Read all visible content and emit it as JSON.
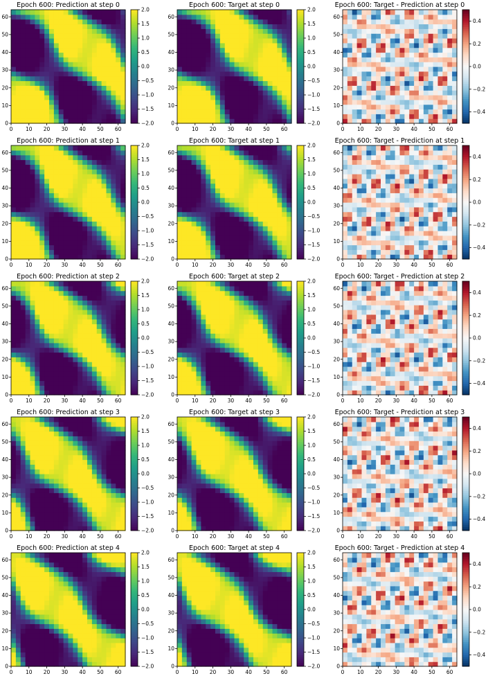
{
  "figure": {
    "rows": 5,
    "columns": [
      "prediction",
      "target",
      "difference"
    ]
  },
  "colormaps": {
    "field": [
      "#440154",
      "#482878",
      "#3e4989",
      "#31688e",
      "#26828e",
      "#1f9e89",
      "#35b779",
      "#6ece58",
      "#b5de2b",
      "#fde725"
    ],
    "diff": [
      "#053061",
      "#2166ac",
      "#4393c3",
      "#92c5de",
      "#d1e5f0",
      "#f7f7f7",
      "#fddbc7",
      "#f4a582",
      "#d6604d",
      "#b2182b",
      "#67001f"
    ]
  },
  "chart_data": [
    {
      "type": "heatmap",
      "title": "Epoch 600: Prediction at step 0",
      "step": 0,
      "field": "prediction",
      "colormap": "viridis",
      "xlim": [
        0,
        64
      ],
      "ylim": [
        0,
        64
      ],
      "xticks": [
        0,
        10,
        20,
        30,
        40,
        50,
        60
      ],
      "yticks": [
        0,
        10,
        20,
        30,
        40,
        50,
        60
      ],
      "color_range": [
        -2.0,
        2.0
      ],
      "colorbar_ticks": [
        "-2.0",
        "-1.5",
        "-1.0",
        "-0.5",
        "0.0",
        "0.5",
        "1.0",
        "1.5",
        "2.0"
      ]
    },
    {
      "type": "heatmap",
      "title": "Epoch 600: Target at step 0",
      "step": 0,
      "field": "target",
      "colormap": "viridis",
      "xlim": [
        0,
        64
      ],
      "ylim": [
        0,
        64
      ],
      "xticks": [
        0,
        10,
        20,
        30,
        40,
        50,
        60
      ],
      "yticks": [
        0,
        10,
        20,
        30,
        40,
        50,
        60
      ],
      "color_range": [
        -2.0,
        2.0
      ],
      "colorbar_ticks": [
        "-2.0",
        "-1.5",
        "-1.0",
        "-0.5",
        "0.0",
        "0.5",
        "1.0",
        "1.5",
        "2.0"
      ]
    },
    {
      "type": "heatmap",
      "title": "Epoch 600: Target - Prediction at step 0",
      "step": 0,
      "field": "difference",
      "colormap": "RdBu_r",
      "xlim": [
        0,
        64
      ],
      "ylim": [
        0,
        64
      ],
      "xticks": [
        0,
        10,
        20,
        30,
        40,
        50,
        60
      ],
      "yticks": [
        0,
        10,
        20,
        30,
        40,
        50,
        60
      ],
      "color_range": [
        -0.5,
        0.5
      ],
      "colorbar_ticks": [
        "-0.4",
        "-0.2",
        "0.0",
        "0.2",
        "0.4"
      ]
    },
    {
      "type": "heatmap",
      "title": "Epoch 600: Prediction at step 1",
      "step": 1,
      "field": "prediction",
      "colormap": "viridis",
      "xlim": [
        0,
        64
      ],
      "ylim": [
        0,
        64
      ],
      "xticks": [
        0,
        10,
        20,
        30,
        40,
        50,
        60
      ],
      "yticks": [
        0,
        10,
        20,
        30,
        40,
        50,
        60
      ],
      "color_range": [
        -2.0,
        2.0
      ],
      "colorbar_ticks": [
        "-2.0",
        "-1.5",
        "-1.0",
        "-0.5",
        "0.0",
        "0.5",
        "1.0",
        "1.5",
        "2.0"
      ]
    },
    {
      "type": "heatmap",
      "title": "Epoch 600: Target at step 1",
      "step": 1,
      "field": "target",
      "colormap": "viridis",
      "xlim": [
        0,
        64
      ],
      "ylim": [
        0,
        64
      ],
      "xticks": [
        0,
        10,
        20,
        30,
        40,
        50,
        60
      ],
      "yticks": [
        0,
        10,
        20,
        30,
        40,
        50,
        60
      ],
      "color_range": [
        -2.0,
        2.0
      ],
      "colorbar_ticks": [
        "-2.0",
        "-1.5",
        "-1.0",
        "-0.5",
        "0.0",
        "0.5",
        "1.0",
        "1.5",
        "2.0"
      ]
    },
    {
      "type": "heatmap",
      "title": "Epoch 600: Target - Prediction at step 1",
      "step": 1,
      "field": "difference",
      "colormap": "RdBu_r",
      "xlim": [
        0,
        64
      ],
      "ylim": [
        0,
        64
      ],
      "xticks": [
        0,
        10,
        20,
        30,
        40,
        50,
        60
      ],
      "yticks": [
        0,
        10,
        20,
        30,
        40,
        50,
        60
      ],
      "color_range": [
        -0.5,
        0.5
      ],
      "colorbar_ticks": [
        "-0.4",
        "-0.2",
        "0.0",
        "0.2",
        "0.4"
      ]
    },
    {
      "type": "heatmap",
      "title": "Epoch 600: Prediction at step 2",
      "step": 2,
      "field": "prediction",
      "colormap": "viridis",
      "xlim": [
        0,
        64
      ],
      "ylim": [
        0,
        64
      ],
      "xticks": [
        0,
        10,
        20,
        30,
        40,
        50,
        60
      ],
      "yticks": [
        0,
        10,
        20,
        30,
        40,
        50,
        60
      ],
      "color_range": [
        -2.0,
        2.0
      ],
      "colorbar_ticks": [
        "-2.0",
        "-1.5",
        "-1.0",
        "-0.5",
        "0.0",
        "0.5",
        "1.0",
        "1.5",
        "2.0"
      ]
    },
    {
      "type": "heatmap",
      "title": "Epoch 600: Target at step 2",
      "step": 2,
      "field": "target",
      "colormap": "viridis",
      "xlim": [
        0,
        64
      ],
      "ylim": [
        0,
        64
      ],
      "xticks": [
        0,
        10,
        20,
        30,
        40,
        50,
        60
      ],
      "yticks": [
        0,
        10,
        20,
        30,
        40,
        50,
        60
      ],
      "color_range": [
        -2.0,
        2.0
      ],
      "colorbar_ticks": [
        "-2.0",
        "-1.5",
        "-1.0",
        "-0.5",
        "0.0",
        "0.5",
        "1.0",
        "1.5",
        "2.0"
      ]
    },
    {
      "type": "heatmap",
      "title": "Epoch 600: Target - Prediction at step 2",
      "step": 2,
      "field": "difference",
      "colormap": "RdBu_r",
      "xlim": [
        0,
        64
      ],
      "ylim": [
        0,
        64
      ],
      "xticks": [
        0,
        10,
        20,
        30,
        40,
        50,
        60
      ],
      "yticks": [
        0,
        10,
        20,
        30,
        40,
        50,
        60
      ],
      "color_range": [
        -0.5,
        0.5
      ],
      "colorbar_ticks": [
        "-0.4",
        "-0.2",
        "0.0",
        "0.2",
        "0.4"
      ]
    },
    {
      "type": "heatmap",
      "title": "Epoch 600: Prediction at step 3",
      "step": 3,
      "field": "prediction",
      "colormap": "viridis",
      "xlim": [
        0,
        64
      ],
      "ylim": [
        0,
        64
      ],
      "xticks": [
        0,
        10,
        20,
        30,
        40,
        50,
        60
      ],
      "yticks": [
        0,
        10,
        20,
        30,
        40,
        50,
        60
      ],
      "color_range": [
        -2.0,
        2.0
      ],
      "colorbar_ticks": [
        "-2.0",
        "-1.5",
        "-1.0",
        "-0.5",
        "0.0",
        "0.5",
        "1.0",
        "1.5",
        "2.0"
      ]
    },
    {
      "type": "heatmap",
      "title": "Epoch 600: Target at step 3",
      "step": 3,
      "field": "target",
      "colormap": "viridis",
      "xlim": [
        0,
        64
      ],
      "ylim": [
        0,
        64
      ],
      "xticks": [
        0,
        10,
        20,
        30,
        40,
        50,
        60
      ],
      "yticks": [
        0,
        10,
        20,
        30,
        40,
        50,
        60
      ],
      "color_range": [
        -2.0,
        2.0
      ],
      "colorbar_ticks": [
        "-2.0",
        "-1.5",
        "-1.0",
        "-0.5",
        "0.0",
        "0.5",
        "1.0",
        "1.5",
        "2.0"
      ]
    },
    {
      "type": "heatmap",
      "title": "Epoch 600: Target - Prediction at step 3",
      "step": 3,
      "field": "difference",
      "colormap": "RdBu_r",
      "xlim": [
        0,
        64
      ],
      "ylim": [
        0,
        64
      ],
      "xticks": [
        0,
        10,
        20,
        30,
        40,
        50,
        60
      ],
      "yticks": [
        0,
        10,
        20,
        30,
        40,
        50,
        60
      ],
      "color_range": [
        -0.5,
        0.5
      ],
      "colorbar_ticks": [
        "-0.4",
        "-0.2",
        "0.0",
        "0.2",
        "0.4"
      ]
    },
    {
      "type": "heatmap",
      "title": "Epoch 600: Prediction at step 4",
      "step": 4,
      "field": "prediction",
      "colormap": "viridis",
      "xlim": [
        0,
        64
      ],
      "ylim": [
        0,
        64
      ],
      "xticks": [
        0,
        10,
        20,
        30,
        40,
        50,
        60
      ],
      "yticks": [
        0,
        10,
        20,
        30,
        40,
        50,
        60
      ],
      "color_range": [
        -2.0,
        2.0
      ],
      "colorbar_ticks": [
        "-2.0",
        "-1.5",
        "-1.0",
        "-0.5",
        "0.0",
        "0.5",
        "1.0",
        "1.5",
        "2.0"
      ]
    },
    {
      "type": "heatmap",
      "title": "Epoch 600: Target at step 4",
      "step": 4,
      "field": "target",
      "colormap": "viridis",
      "xlim": [
        0,
        64
      ],
      "ylim": [
        0,
        64
      ],
      "xticks": [
        0,
        10,
        20,
        30,
        40,
        50,
        60
      ],
      "yticks": [
        0,
        10,
        20,
        30,
        40,
        50,
        60
      ],
      "color_range": [
        -2.0,
        2.0
      ],
      "colorbar_ticks": [
        "-2.0",
        "-1.5",
        "-1.0",
        "-0.5",
        "0.0",
        "0.5",
        "1.0",
        "1.5",
        "2.0"
      ]
    },
    {
      "type": "heatmap",
      "title": "Epoch 600: Target - Prediction at step 4",
      "step": 4,
      "field": "difference",
      "colormap": "RdBu_r",
      "xlim": [
        0,
        64
      ],
      "ylim": [
        0,
        64
      ],
      "xticks": [
        0,
        10,
        20,
        30,
        40,
        50,
        60
      ],
      "yticks": [
        0,
        10,
        20,
        30,
        40,
        50,
        60
      ],
      "color_range": [
        -0.5,
        0.5
      ],
      "colorbar_ticks": [
        "-0.4",
        "-0.2",
        "0.0",
        "0.2",
        "0.4"
      ]
    }
  ]
}
